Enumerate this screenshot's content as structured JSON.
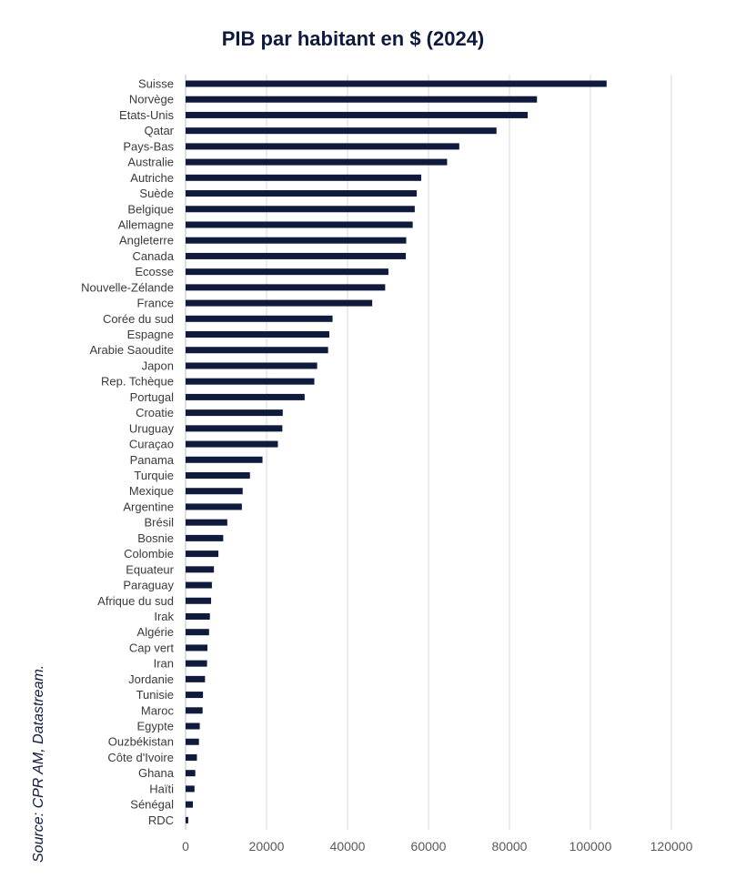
{
  "chart_data": {
    "type": "bar",
    "orientation": "horizontal",
    "title": "PIB par habitant en $ (2024)",
    "source": "Source: CPR AM, Datastream.",
    "bar_color": "#0f1a3c",
    "grid": true,
    "xlim": [
      0,
      120000
    ],
    "xticks": [
      "0",
      "20000",
      "40000",
      "60000",
      "80000",
      "100000",
      "120000"
    ],
    "categories": [
      "Suisse",
      "Norvège",
      "Etats-Unis",
      "Qatar",
      "Pays-Bas",
      "Australie",
      "Autriche",
      "Suède",
      "Belgique",
      "Allemagne",
      "Angleterre",
      "Canada",
      "Ecosse",
      "Nouvelle-Zélande",
      "France",
      "Corée du sud",
      "Espagne",
      "Arabie Saoudite",
      "Japon",
      "Rep. Tchèque",
      "Portugal",
      "Croatie",
      "Uruguay",
      "Curaçao",
      "Panama",
      "Turquie",
      "Mexique",
      "Argentine",
      "Brésil",
      "Bosnie",
      "Colombie",
      "Equateur",
      "Paraguay",
      "Afrique du sud",
      "Irak",
      "Algérie",
      "Cap vert",
      "Iran",
      "Jordanie",
      "Tunisie",
      "Maroc",
      "Egypte",
      "Ouzbékistan",
      "Côte d'Ivoire",
      "Ghana",
      "Haïti",
      "Sénégal",
      "RDC"
    ],
    "values": [
      104000,
      86800,
      84500,
      76800,
      67600,
      64600,
      58200,
      57100,
      56600,
      56100,
      54500,
      54400,
      50100,
      49300,
      46100,
      36300,
      35500,
      35200,
      32500,
      31800,
      29400,
      24000,
      23900,
      22800,
      19000,
      15900,
      14100,
      13900,
      10300,
      9300,
      8100,
      7000,
      6500,
      6300,
      6000,
      5800,
      5400,
      5300,
      4800,
      4300,
      4200,
      3500,
      3300,
      2800,
      2400,
      2200,
      1800,
      650
    ]
  }
}
